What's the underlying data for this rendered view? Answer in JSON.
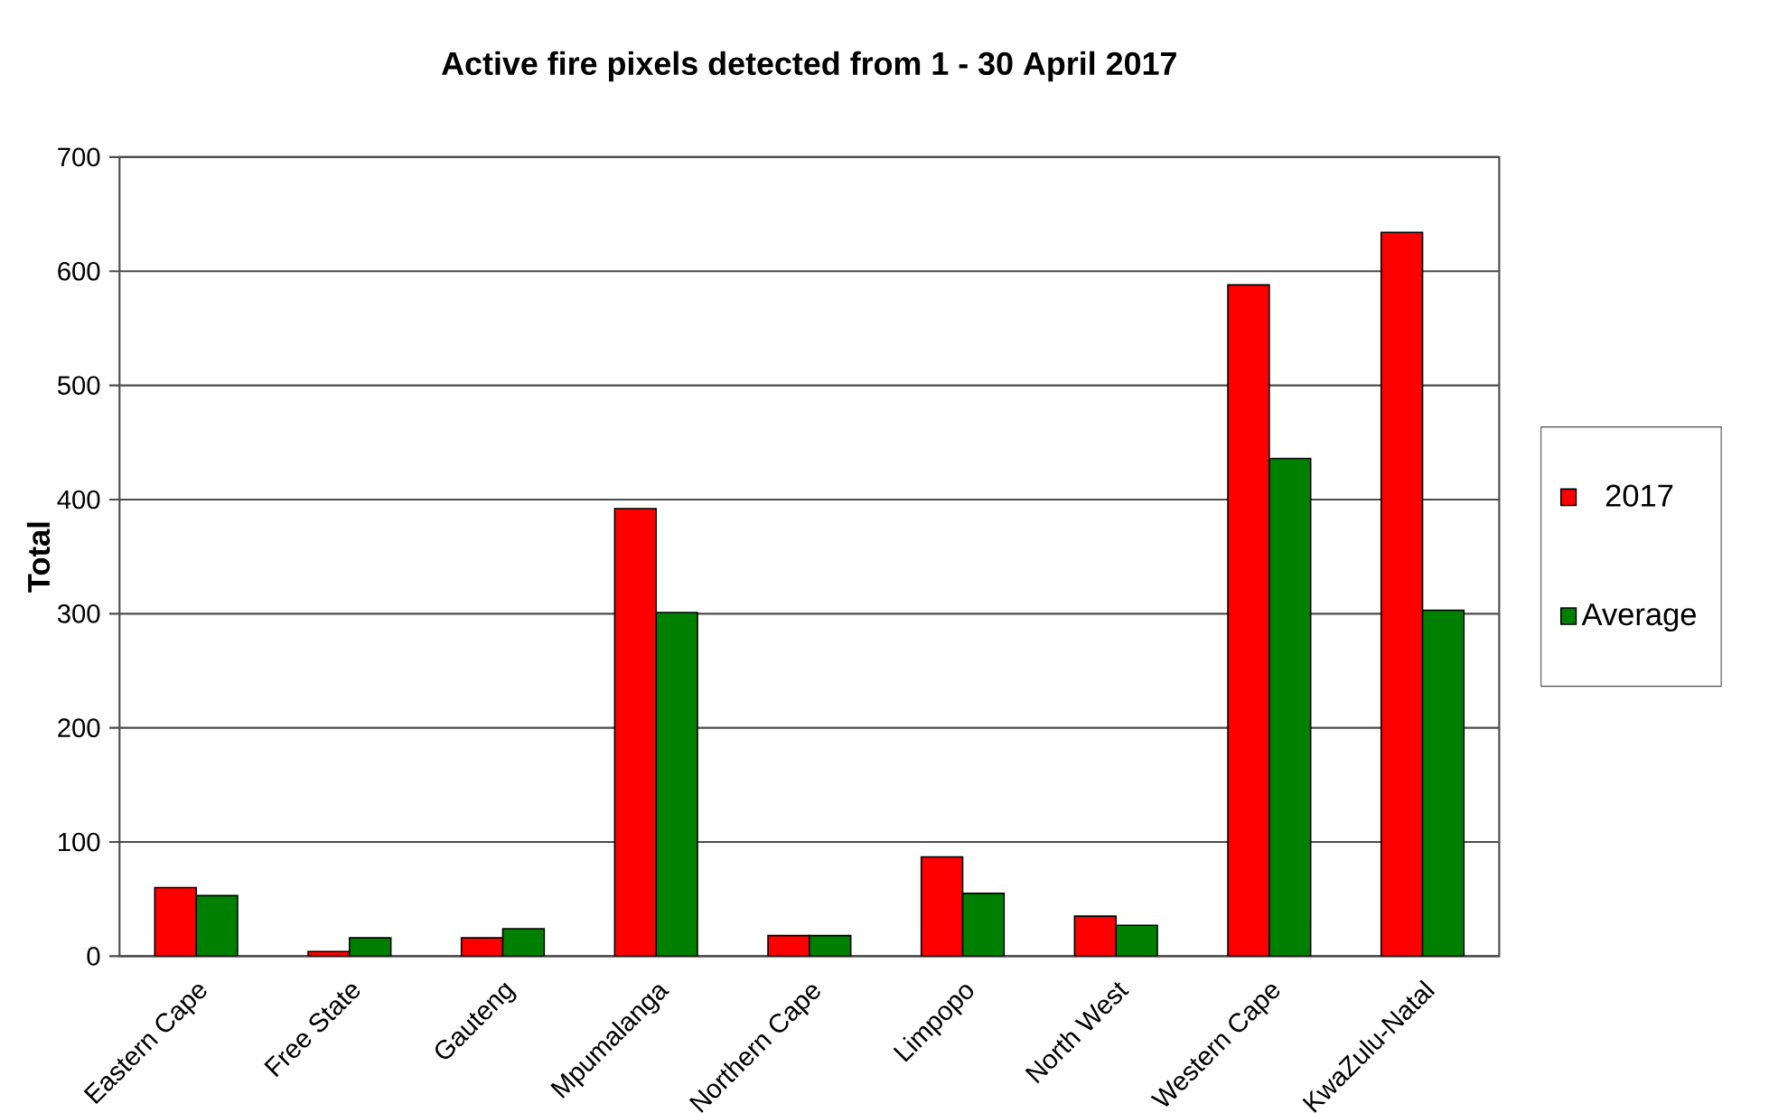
{
  "chart_data": {
    "type": "bar",
    "title": "Active fire pixels detected from 1 - 30 April 2017",
    "ylabel": "Total",
    "categories": [
      "Eastern Cape",
      "Free State",
      "Gauteng",
      "Mpumalanga",
      "Northern Cape",
      "Limpopo",
      "North West",
      "Western Cape",
      "KwaZulu-Natal"
    ],
    "series": [
      {
        "name": "2017",
        "color": "#ff0000",
        "values": [
          60,
          4,
          16,
          392,
          18,
          87,
          35,
          588,
          634
        ]
      },
      {
        "name": "Average",
        "color": "#008000",
        "values": [
          53,
          16,
          24,
          301,
          18,
          55,
          27,
          436,
          303
        ]
      }
    ],
    "ylim": [
      0,
      700
    ],
    "yticks": [
      0,
      100,
      200,
      300,
      400,
      500,
      600,
      700
    ],
    "grid": "y",
    "legend": "right"
  }
}
